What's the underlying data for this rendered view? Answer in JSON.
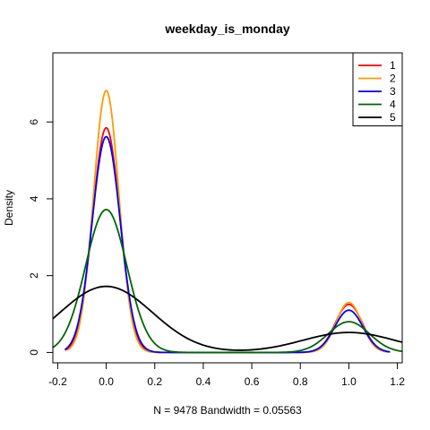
{
  "chart_data": {
    "type": "line",
    "title": "weekday_is_monday",
    "xlabel": "N = 9478   Bandwidth = 0.05563",
    "ylabel": "Density",
    "xlim": [
      -0.22,
      1.22
    ],
    "ylim": [
      -0.27,
      7.8
    ],
    "x_ticks": [
      -0.2,
      0.0,
      0.2,
      0.4,
      0.6,
      0.8,
      1.0,
      1.2
    ],
    "x_tick_labels": [
      "-0.2",
      "0.0",
      "0.2",
      "0.4",
      "0.6",
      "0.8",
      "1.0",
      "1.2"
    ],
    "y_ticks": [
      0,
      2,
      4,
      6
    ],
    "y_tick_labels": [
      "0",
      "2",
      "4",
      "6"
    ],
    "grid": false,
    "legend_position": "top-right",
    "series": [
      {
        "name": "1",
        "color": "#ff0000",
        "peak0": 5.85,
        "peak1": 1.25,
        "sigma": 0.056,
        "x_range": [
          -0.17,
          1.17
        ]
      },
      {
        "name": "2",
        "color": "#ff9900",
        "peak0": 6.82,
        "peak1": 1.3,
        "sigma": 0.052,
        "x_range": [
          -0.16,
          1.16
        ]
      },
      {
        "name": "3",
        "color": "#0000ff",
        "peak0": 5.62,
        "peak1": 1.1,
        "sigma": 0.058,
        "x_range": [
          -0.17,
          1.17
        ]
      },
      {
        "name": "4",
        "color": "#006600",
        "peak0": 3.72,
        "peak1": 0.8,
        "sigma": 0.085,
        "x_range": [
          -0.25,
          1.25
        ]
      },
      {
        "name": "5",
        "color": "#000000",
        "peak0": 1.72,
        "peak1": 0.52,
        "sigma": 0.19,
        "x_range": [
          -0.6,
          1.6
        ]
      }
    ]
  }
}
